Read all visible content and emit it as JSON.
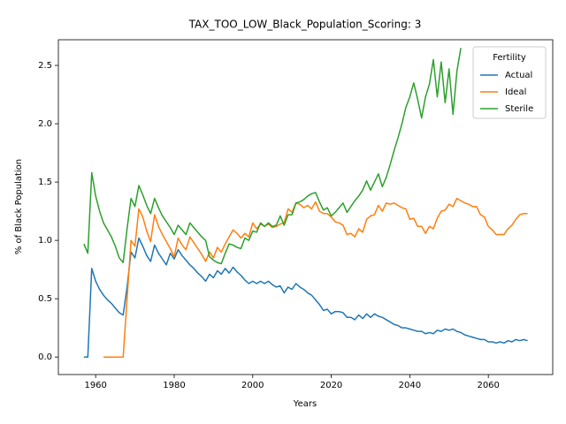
{
  "chart_data": {
    "type": "line",
    "title": "TAX_TOO_LOW_Black_Population_Scoring: 3",
    "xlabel": "Years",
    "ylabel": "% of Black Population",
    "legend_title": "Fertility",
    "legend": "upper right",
    "grid": false,
    "x": [
      1957,
      1958,
      1959,
      1960,
      1961,
      1962,
      1963,
      1964,
      1965,
      1966,
      1967,
      1968,
      1969,
      1970,
      1971,
      1972,
      1973,
      1974,
      1975,
      1976,
      1977,
      1978,
      1979,
      1980,
      1981,
      1982,
      1983,
      1984,
      1985,
      1986,
      1987,
      1988,
      1989,
      1990,
      1991,
      1992,
      1993,
      1994,
      1995,
      1996,
      1997,
      1998,
      1999,
      2000,
      2001,
      2002,
      2003,
      2004,
      2005,
      2006,
      2007,
      2008,
      2009,
      2010,
      2011,
      2012,
      2013,
      2014,
      2015,
      2016,
      2017,
      2018,
      2019,
      2020,
      2021,
      2022,
      2023,
      2024,
      2025,
      2026,
      2027,
      2028,
      2029,
      2030,
      2031,
      2032,
      2033,
      2034,
      2035,
      2036,
      2037,
      2038,
      2039,
      2040,
      2041,
      2042,
      2043,
      2044,
      2045,
      2046,
      2047,
      2048,
      2049,
      2050,
      2051,
      2052,
      2053,
      2054,
      2055,
      2056,
      2057,
      2058,
      2059,
      2060,
      2061,
      2062,
      2063,
      2064,
      2065,
      2066,
      2067,
      2068,
      2069,
      2070
    ],
    "series": [
      {
        "name": "Actual",
        "color": "#1f77b4",
        "values": [
          0,
          0,
          0.76,
          0.65,
          0.58,
          0.53,
          0.49,
          0.46,
          0.42,
          0.38,
          0.36,
          0.6,
          0.9,
          0.85,
          1.02,
          0.95,
          0.87,
          0.82,
          0.96,
          0.89,
          0.84,
          0.79,
          0.89,
          0.84,
          0.92,
          0.87,
          0.83,
          0.79,
          0.76,
          0.72,
          0.69,
          0.65,
          0.71,
          0.68,
          0.74,
          0.71,
          0.76,
          0.72,
          0.77,
          0.73,
          0.7,
          0.66,
          0.63,
          0.65,
          0.63,
          0.65,
          0.63,
          0.65,
          0.62,
          0.6,
          0.61,
          0.55,
          0.6,
          0.58,
          0.63,
          0.6,
          0.58,
          0.55,
          0.53,
          0.49,
          0.45,
          0.4,
          0.41,
          0.37,
          0.39,
          0.39,
          0.38,
          0.34,
          0.34,
          0.32,
          0.36,
          0.33,
          0.37,
          0.34,
          0.37,
          0.35,
          0.34,
          0.32,
          0.3,
          0.28,
          0.27,
          0.25,
          0.25,
          0.24,
          0.23,
          0.22,
          0.22,
          0.2,
          0.21,
          0.2,
          0.23,
          0.22,
          0.24,
          0.23,
          0.24,
          0.22,
          0.21,
          0.19,
          0.18,
          0.17,
          0.16,
          0.15,
          0.15,
          0.13,
          0.13,
          0.12,
          0.13,
          0.12,
          0.14,
          0.13,
          0.15,
          0.14,
          0.15,
          0.14
        ]
      },
      {
        "name": "Ideal",
        "color": "#ff7f0e",
        "values": [
          null,
          null,
          null,
          null,
          null,
          0,
          0,
          0,
          0,
          0,
          0,
          0.5,
          1.0,
          0.95,
          1.27,
          1.2,
          1.08,
          0.99,
          1.22,
          1.12,
          1.05,
          0.99,
          0.93,
          0.86,
          1.02,
          0.96,
          0.92,
          1.03,
          0.98,
          0.93,
          0.88,
          0.82,
          0.9,
          0.85,
          0.94,
          0.9,
          0.97,
          1.03,
          1.09,
          1.06,
          1.02,
          1.06,
          1.03,
          1.15,
          1.1,
          1.14,
          1.12,
          1.14,
          1.11,
          1.12,
          1.14,
          1.15,
          1.27,
          1.24,
          1.32,
          1.31,
          1.28,
          1.3,
          1.27,
          1.33,
          1.25,
          1.23,
          1.23,
          1.2,
          1.16,
          1.15,
          1.13,
          1.05,
          1.06,
          1.03,
          1.1,
          1.07,
          1.18,
          1.21,
          1.22,
          1.3,
          1.25,
          1.32,
          1.31,
          1.32,
          1.3,
          1.28,
          1.27,
          1.18,
          1.19,
          1.12,
          1.12,
          1.06,
          1.12,
          1.1,
          1.19,
          1.25,
          1.26,
          1.31,
          1.29,
          1.36,
          1.34,
          1.32,
          1.31,
          1.29,
          1.29,
          1.22,
          1.2,
          1.12,
          1.09,
          1.05,
          1.05,
          1.05,
          1.1,
          1.13,
          1.18,
          1.22,
          1.23,
          1.23
        ]
      },
      {
        "name": "Sterile",
        "color": "#2ca02c",
        "values": [
          0.97,
          0.89,
          1.58,
          1.38,
          1.25,
          1.15,
          1.09,
          1.03,
          0.95,
          0.85,
          0.81,
          1.1,
          1.36,
          1.29,
          1.47,
          1.39,
          1.3,
          1.23,
          1.36,
          1.28,
          1.21,
          1.16,
          1.11,
          1.05,
          1.13,
          1.09,
          1.05,
          1.15,
          1.11,
          1.07,
          1.03,
          1.0,
          0.86,
          0.83,
          0.81,
          0.8,
          0.89,
          0.97,
          0.96,
          0.94,
          0.93,
          1.02,
          1.0,
          1.08,
          1.07,
          1.15,
          1.12,
          1.15,
          1.12,
          1.13,
          1.21,
          1.13,
          1.22,
          1.22,
          1.32,
          1.33,
          1.35,
          1.38,
          1.4,
          1.41,
          1.33,
          1.26,
          1.28,
          1.21,
          1.24,
          1.28,
          1.32,
          1.24,
          1.29,
          1.34,
          1.38,
          1.43,
          1.51,
          1.43,
          1.5,
          1.57,
          1.46,
          1.54,
          1.65,
          1.77,
          1.88,
          2.0,
          2.14,
          2.23,
          2.35,
          2.21,
          2.05,
          2.23,
          2.34,
          2.55,
          2.23,
          2.53,
          2.18,
          2.47,
          2.08,
          2.45,
          2.65,
          null,
          null,
          null,
          null,
          null,
          null,
          null,
          null,
          null,
          null,
          null,
          null,
          null,
          null,
          null,
          null,
          null
        ]
      }
    ],
    "xlim": [
      1950.5,
      2076.4
    ],
    "xticks": [
      1960,
      1980,
      2000,
      2020,
      2040,
      2060
    ],
    "ylim": [
      -0.15,
      2.72
    ],
    "yticks": [
      {
        "value": 0,
        "label": "0.0"
      },
      0.5,
      {
        "value": 1,
        "label": "1.0"
      },
      1.5,
      {
        "value": 2,
        "label": "2.0"
      },
      2.5
    ]
  }
}
